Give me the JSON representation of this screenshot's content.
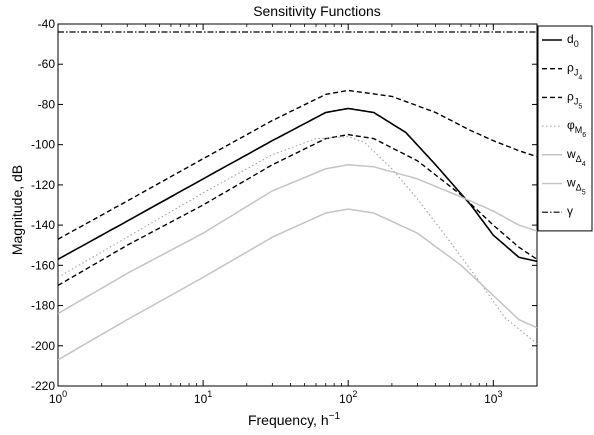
{
  "chart_data": {
    "type": "line",
    "title": "Sensitivity Functions",
    "xlabel": "Frequency, h",
    "xlabel_sup": "−1",
    "ylabel": "Magnitude, dB",
    "xscale": "log",
    "xlim": [
      1,
      2000
    ],
    "ylim": [
      -220,
      -40
    ],
    "x_ticks": [
      {
        "value": 1,
        "base": "10",
        "exp": "0"
      },
      {
        "value": 10,
        "base": "10",
        "exp": "1"
      },
      {
        "value": 100,
        "base": "10",
        "exp": "2"
      },
      {
        "value": 1000,
        "base": "10",
        "exp": "3"
      }
    ],
    "y_ticks": [
      "-40",
      "-60",
      "-80",
      "-100",
      "-120",
      "-140",
      "-160",
      "-180",
      "-200",
      "-220"
    ],
    "grid": false,
    "legend_position": "right",
    "series": [
      {
        "key": "d0",
        "symbol": "d",
        "sub": "0",
        "subsub": "",
        "color": "#000000",
        "dash": "",
        "width": 1.6,
        "points": [
          [
            1,
            -157
          ],
          [
            3,
            -138
          ],
          [
            10,
            -117
          ],
          [
            30,
            -98
          ],
          [
            70,
            -84
          ],
          [
            100,
            -82
          ],
          [
            150,
            -84
          ],
          [
            250,
            -94
          ],
          [
            400,
            -110
          ],
          [
            700,
            -130
          ],
          [
            1000,
            -145
          ],
          [
            1500,
            -156
          ],
          [
            2000,
            -158
          ]
        ]
      },
      {
        "key": "rhoJ4",
        "symbol": "ρ",
        "sub": "J",
        "subsub": "4",
        "color": "#000000",
        "dash": "5,3",
        "width": 1.4,
        "points": [
          [
            1,
            -147
          ],
          [
            3,
            -128
          ],
          [
            10,
            -107
          ],
          [
            30,
            -88
          ],
          [
            70,
            -75
          ],
          [
            100,
            -73
          ],
          [
            200,
            -76
          ],
          [
            400,
            -84
          ],
          [
            700,
            -93
          ],
          [
            1000,
            -98
          ],
          [
            1500,
            -103
          ],
          [
            2000,
            -106
          ]
        ]
      },
      {
        "key": "rhoJ5",
        "symbol": "ρ",
        "sub": "J",
        "subsub": "5",
        "color": "#000000",
        "dash": "5,3",
        "width": 1.4,
        "points": [
          [
            1,
            -170
          ],
          [
            3,
            -150
          ],
          [
            10,
            -130
          ],
          [
            30,
            -110
          ],
          [
            70,
            -97
          ],
          [
            100,
            -95
          ],
          [
            150,
            -97
          ],
          [
            300,
            -108
          ],
          [
            600,
            -125
          ],
          [
            1000,
            -140
          ],
          [
            1500,
            -151
          ],
          [
            2000,
            -157
          ]
        ]
      },
      {
        "key": "phiM6",
        "symbol": "φ",
        "sub": "M",
        "subsub": "6",
        "color": "#9a9a9a",
        "dash": "1.5,2.5",
        "width": 1.0,
        "points": [
          [
            1,
            -166
          ],
          [
            3,
            -146
          ],
          [
            10,
            -124
          ],
          [
            30,
            -105
          ],
          [
            60,
            -97
          ],
          [
            100,
            -96
          ],
          [
            130,
            -99
          ],
          [
            200,
            -112
          ],
          [
            300,
            -127
          ],
          [
            500,
            -148
          ],
          [
            800,
            -168
          ],
          [
            1200,
            -186
          ],
          [
            2000,
            -199
          ]
        ]
      },
      {
        "key": "wDelta4",
        "symbol": "w",
        "sub": "Δ",
        "subsub": "4",
        "color": "#c4c4c4",
        "dash": "",
        "width": 1.5,
        "points": [
          [
            1,
            -184
          ],
          [
            3,
            -164
          ],
          [
            10,
            -144
          ],
          [
            30,
            -123
          ],
          [
            70,
            -112
          ],
          [
            100,
            -110
          ],
          [
            150,
            -111
          ],
          [
            300,
            -117
          ],
          [
            600,
            -126
          ],
          [
            1000,
            -133
          ],
          [
            1500,
            -140
          ],
          [
            2000,
            -143
          ]
        ]
      },
      {
        "key": "wDelta5",
        "symbol": "w",
        "sub": "Δ",
        "subsub": "5",
        "color": "#c4c4c4",
        "dash": "",
        "width": 1.5,
        "points": [
          [
            1,
            -207
          ],
          [
            3,
            -187
          ],
          [
            10,
            -166
          ],
          [
            30,
            -146
          ],
          [
            70,
            -134
          ],
          [
            100,
            -132
          ],
          [
            150,
            -134
          ],
          [
            300,
            -144
          ],
          [
            600,
            -160
          ],
          [
            1000,
            -175
          ],
          [
            1500,
            -187
          ],
          [
            2000,
            -191
          ]
        ]
      },
      {
        "key": "gamma",
        "symbol": "γ",
        "sub": "",
        "subsub": "",
        "color": "#000000",
        "dash": "6,2,1.5,2",
        "width": 1.2,
        "points": [
          [
            1,
            -44
          ],
          [
            2000,
            -44
          ]
        ]
      }
    ]
  }
}
